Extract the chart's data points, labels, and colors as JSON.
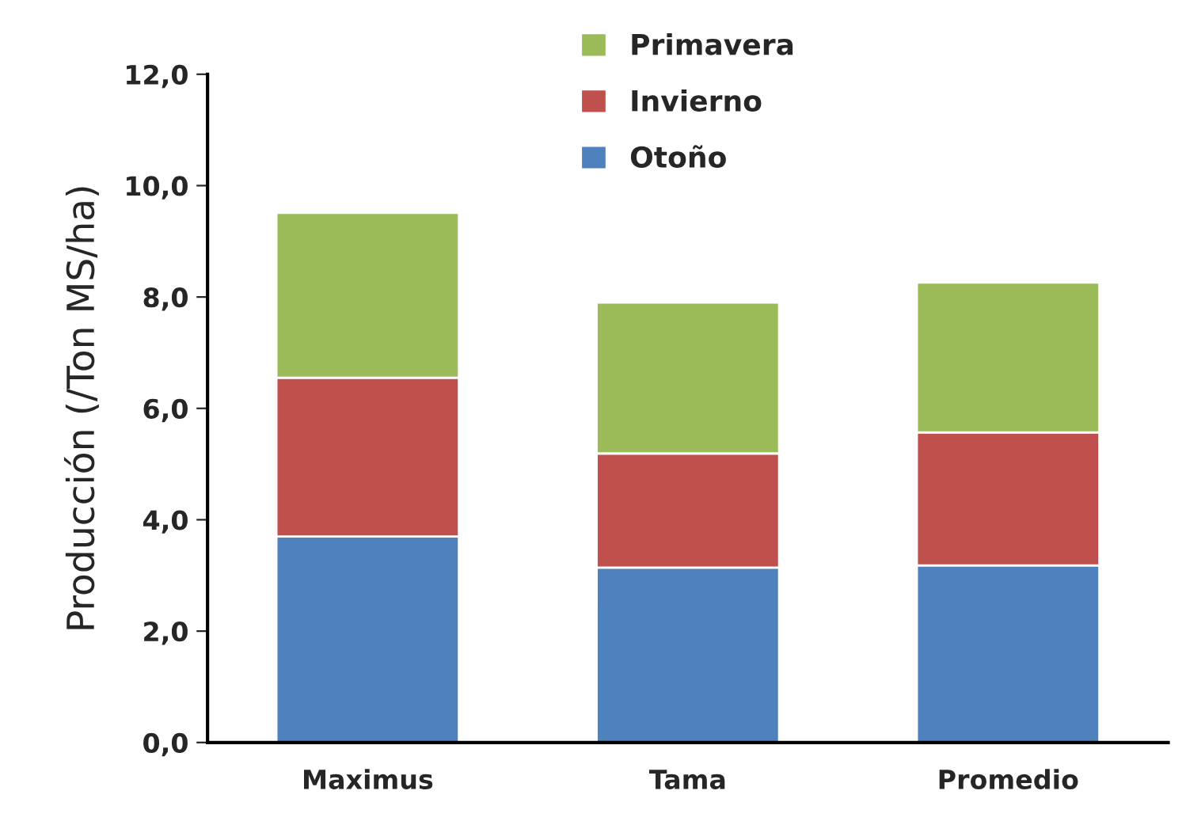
{
  "chart_data": {
    "type": "bar",
    "stacked": true,
    "ylabel": "Producción (/Ton MS/ha)",
    "categories": [
      "Maximus",
      "Tama",
      "Promedio"
    ],
    "series": [
      {
        "name": "Otoño",
        "color": "#4f81bd",
        "values": [
          3.7,
          3.14,
          3.18
        ]
      },
      {
        "name": "Invierno",
        "color": "#c0504d",
        "values": [
          2.85,
          2.05,
          2.39
        ]
      },
      {
        "name": "Primavera",
        "color": "#9bbb59",
        "values": [
          2.96,
          2.71,
          2.69
        ]
      }
    ],
    "ylim": [
      0,
      12
    ],
    "yticks": [
      {
        "value": 0,
        "label": "0,0"
      },
      {
        "value": 2,
        "label": "2,0"
      },
      {
        "value": 4,
        "label": "4,0"
      },
      {
        "value": 6,
        "label": "6,0"
      },
      {
        "value": 8,
        "label": "8,0"
      },
      {
        "value": 10,
        "label": "10,0"
      },
      {
        "value": 12,
        "label": "12,0"
      }
    ],
    "legend": "top",
    "grid": false
  }
}
